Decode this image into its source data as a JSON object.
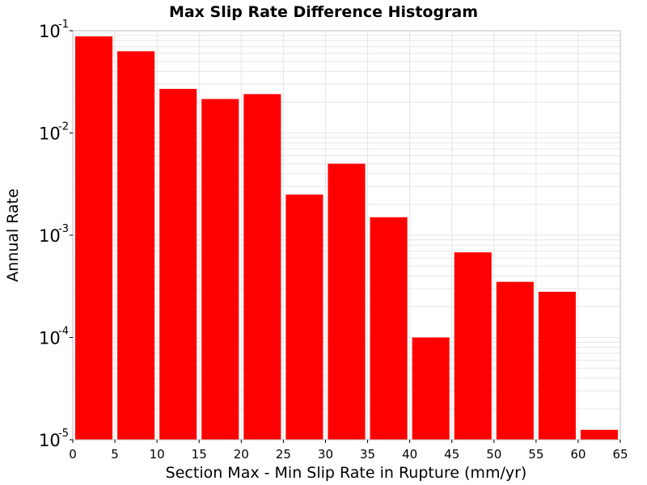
{
  "chart_data": {
    "type": "bar",
    "title": "Max Slip Rate Difference Histogram",
    "xlabel": "Section Max - Min Slip Rate in Rupture (mm/yr)",
    "ylabel": "Annual Rate",
    "yscale": "log",
    "ylim": [
      1e-05,
      0.1
    ],
    "xlim": [
      0,
      65
    ],
    "bin_width": 5,
    "x_ticks": [
      0,
      5,
      10,
      15,
      20,
      25,
      30,
      35,
      40,
      45,
      50,
      55,
      60,
      65
    ],
    "y_ticks": [
      {
        "base": "10",
        "exp": "-5",
        "value": 1e-05
      },
      {
        "base": "10",
        "exp": "-4",
        "value": 0.0001
      },
      {
        "base": "10",
        "exp": "-3",
        "value": 0.001
      },
      {
        "base": "10",
        "exp": "-2",
        "value": 0.01
      },
      {
        "base": "10",
        "exp": "-1",
        "value": 0.1
      }
    ],
    "bins": [
      {
        "x0": 0,
        "x1": 5,
        "value": 0.088
      },
      {
        "x0": 5,
        "x1": 10,
        "value": 0.063
      },
      {
        "x0": 10,
        "x1": 15,
        "value": 0.027
      },
      {
        "x0": 15,
        "x1": 20,
        "value": 0.0215
      },
      {
        "x0": 20,
        "x1": 25,
        "value": 0.024
      },
      {
        "x0": 25,
        "x1": 30,
        "value": 0.0025
      },
      {
        "x0": 30,
        "x1": 35,
        "value": 0.005
      },
      {
        "x0": 35,
        "x1": 40,
        "value": 0.0015
      },
      {
        "x0": 40,
        "x1": 45,
        "value": 0.0001
      },
      {
        "x0": 45,
        "x1": 50,
        "value": 0.00068
      },
      {
        "x0": 50,
        "x1": 55,
        "value": 0.00035
      },
      {
        "x0": 55,
        "x1": 60,
        "value": 0.00028
      },
      {
        "x0": 60,
        "x1": 65,
        "value": 1.25e-05
      }
    ],
    "bar_color": "#ff0000",
    "grid": true,
    "grid_color": "#e6e6e6"
  }
}
